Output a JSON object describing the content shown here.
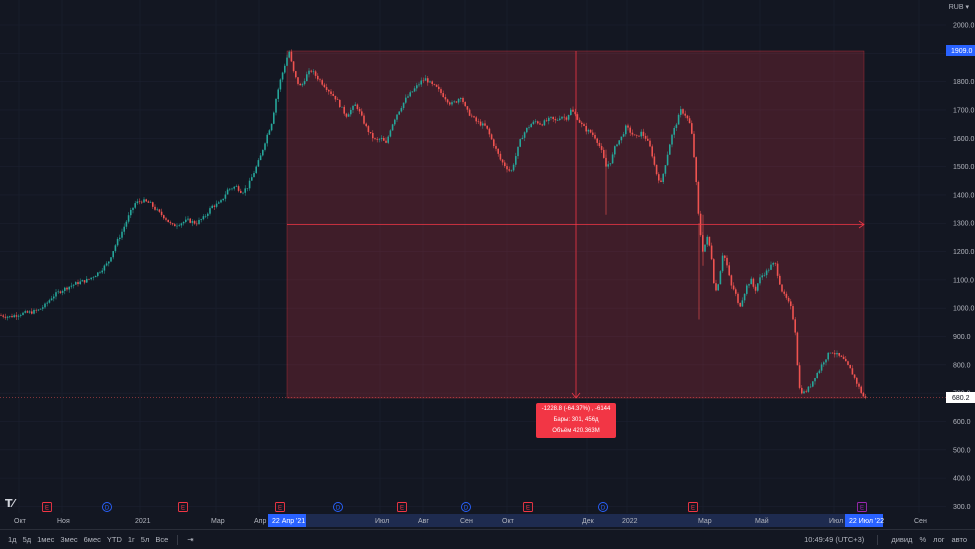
{
  "currency_menu": "RUB ▾",
  "chart_data": {
    "type": "candlestick",
    "title": "",
    "ylim": [
      280,
      2080
    ],
    "y_ticks": [
      300,
      400,
      500,
      600,
      700,
      800,
      900,
      1000,
      1100,
      1200,
      1300,
      1400,
      1500,
      1600,
      1700,
      1800,
      1900,
      2000
    ],
    "y_tick_labels": [
      "300.0",
      "400.0",
      "500.0",
      "600.0",
      "700.0",
      "800.0",
      "900.0",
      "1000.0",
      "1100.0",
      "1200.0",
      "1300.0",
      "1400.0",
      "1500.0",
      "1600.0",
      "1700.0",
      "1800.0",
      "1900.0",
      "2000.0"
    ],
    "x_tick_labels": [
      "Окт",
      "Ноя",
      "2021",
      "Мар",
      "Апр",
      "Июл",
      "Авг",
      "Сен",
      "Окт",
      "Дек",
      "2022",
      "Мар",
      "Май",
      "Июл",
      "Сен"
    ],
    "price_labels": {
      "high": "1909.0",
      "last": "680.2"
    },
    "date_labels": {
      "start": "22 Апр '21",
      "end": "22 Июл '22"
    },
    "path": [
      [
        0,
        975
      ],
      [
        10,
        970
      ],
      [
        20,
        980
      ],
      [
        30,
        985
      ],
      [
        38,
        992
      ],
      [
        45,
        1010
      ],
      [
        52,
        1040
      ],
      [
        60,
        1060
      ],
      [
        68,
        1075
      ],
      [
        78,
        1090
      ],
      [
        88,
        1100
      ],
      [
        98,
        1125
      ],
      [
        108,
        1160
      ],
      [
        115,
        1220
      ],
      [
        122,
        1270
      ],
      [
        128,
        1320
      ],
      [
        135,
        1370
      ],
      [
        142,
        1380
      ],
      [
        150,
        1370
      ],
      [
        158,
        1340
      ],
      [
        165,
        1320
      ],
      [
        172,
        1290
      ],
      [
        180,
        1300
      ],
      [
        188,
        1310
      ],
      [
        196,
        1300
      ],
      [
        204,
        1320
      ],
      [
        212,
        1360
      ],
      [
        220,
        1370
      ],
      [
        228,
        1420
      ],
      [
        236,
        1430
      ],
      [
        242,
        1410
      ],
      [
        248,
        1430
      ],
      [
        254,
        1480
      ],
      [
        260,
        1530
      ],
      [
        266,
        1600
      ],
      [
        272,
        1660
      ],
      [
        276,
        1740
      ],
      [
        280,
        1800
      ],
      [
        284,
        1850
      ],
      [
        289,
        1909
      ],
      [
        293,
        1840
      ],
      [
        297,
        1800
      ],
      [
        301,
        1780
      ],
      [
        306,
        1820
      ],
      [
        311,
        1840
      ],
      [
        316,
        1820
      ],
      [
        321,
        1800
      ],
      [
        326,
        1780
      ],
      [
        331,
        1760
      ],
      [
        336,
        1740
      ],
      [
        341,
        1710
      ],
      [
        346,
        1680
      ],
      [
        351,
        1700
      ],
      [
        356,
        1720
      ],
      [
        361,
        1680
      ],
      [
        366,
        1640
      ],
      [
        371,
        1610
      ],
      [
        376,
        1590
      ],
      [
        381,
        1600
      ],
      [
        386,
        1580
      ],
      [
        391,
        1640
      ],
      [
        396,
        1680
      ],
      [
        401,
        1710
      ],
      [
        406,
        1740
      ],
      [
        411,
        1760
      ],
      [
        416,
        1780
      ],
      [
        421,
        1800
      ],
      [
        426,
        1810
      ],
      [
        431,
        1790
      ],
      [
        436,
        1780
      ],
      [
        441,
        1760
      ],
      [
        446,
        1740
      ],
      [
        451,
        1720
      ],
      [
        456,
        1730
      ],
      [
        461,
        1750
      ],
      [
        466,
        1700
      ],
      [
        471,
        1680
      ],
      [
        476,
        1660
      ],
      [
        481,
        1650
      ],
      [
        486,
        1640
      ],
      [
        491,
        1600
      ],
      [
        496,
        1560
      ],
      [
        501,
        1520
      ],
      [
        506,
        1500
      ],
      [
        511,
        1480
      ],
      [
        516,
        1540
      ],
      [
        521,
        1600
      ],
      [
        526,
        1630
      ],
      [
        531,
        1650
      ],
      [
        536,
        1660
      ],
      [
        541,
        1650
      ],
      [
        546,
        1660
      ],
      [
        551,
        1670
      ],
      [
        556,
        1660
      ],
      [
        561,
        1680
      ],
      [
        566,
        1670
      ],
      [
        571,
        1700
      ],
      [
        576,
        1680
      ],
      [
        581,
        1650
      ],
      [
        586,
        1630
      ],
      [
        591,
        1620
      ],
      [
        596,
        1600
      ],
      [
        601,
        1560
      ],
      [
        606,
        1500
      ],
      [
        611,
        1520
      ],
      [
        616,
        1580
      ],
      [
        621,
        1600
      ],
      [
        626,
        1640
      ],
      [
        631,
        1620
      ],
      [
        636,
        1600
      ],
      [
        641,
        1620
      ],
      [
        646,
        1600
      ],
      [
        651,
        1560
      ],
      [
        656,
        1480
      ],
      [
        661,
        1440
      ],
      [
        666,
        1520
      ],
      [
        671,
        1600
      ],
      [
        676,
        1650
      ],
      [
        681,
        1700
      ],
      [
        686,
        1680
      ],
      [
        691,
        1640
      ],
      [
        695,
        1500
      ],
      [
        699,
        1300
      ],
      [
        703,
        1200
      ],
      [
        707,
        1250
      ],
      [
        711,
        1200
      ],
      [
        715,
        1050
      ],
      [
        719,
        1100
      ],
      [
        723,
        1200
      ],
      [
        727,
        1150
      ],
      [
        731,
        1080
      ],
      [
        735,
        1060
      ],
      [
        739,
        1000
      ],
      [
        743,
        1040
      ],
      [
        747,
        1080
      ],
      [
        751,
        1100
      ],
      [
        755,
        1060
      ],
      [
        759,
        1100
      ],
      [
        763,
        1120
      ],
      [
        767,
        1130
      ],
      [
        771,
        1150
      ],
      [
        775,
        1160
      ],
      [
        779,
        1100
      ],
      [
        783,
        1050
      ],
      [
        787,
        1030
      ],
      [
        791,
        1000
      ],
      [
        795,
        930
      ],
      [
        799,
        720
      ],
      [
        803,
        700
      ],
      [
        807,
        710
      ],
      [
        811,
        730
      ],
      [
        815,
        760
      ],
      [
        819,
        780
      ],
      [
        823,
        810
      ],
      [
        827,
        830
      ],
      [
        831,
        850
      ],
      [
        835,
        840
      ],
      [
        839,
        830
      ],
      [
        843,
        820
      ],
      [
        847,
        800
      ],
      [
        851,
        780
      ],
      [
        855,
        750
      ],
      [
        859,
        720
      ],
      [
        863,
        690
      ],
      [
        866,
        680.2
      ]
    ],
    "measure": {
      "line1": "-1228.8 (-64.37%) , -6144",
      "line2": "Бары: 301, 456д",
      "line3": "Объём 420.363M"
    }
  },
  "event_markers": [
    {
      "letter": "E",
      "kind": "earnings"
    },
    {
      "letter": "D",
      "kind": "dividend"
    },
    {
      "letter": "E",
      "kind": "earnings"
    },
    {
      "letter": "E",
      "kind": "earnings"
    },
    {
      "letter": "D",
      "kind": "dividend"
    },
    {
      "letter": "E",
      "kind": "earnings"
    },
    {
      "letter": "D",
      "kind": "dividend"
    },
    {
      "letter": "E",
      "kind": "earnings"
    },
    {
      "letter": "D",
      "kind": "dividend"
    },
    {
      "letter": "E",
      "kind": "earnings"
    },
    {
      "letter": "E",
      "kind": "earnings-upcoming"
    }
  ],
  "bottom_bar": {
    "ranges": [
      "1д",
      "5д",
      "1мес",
      "3мес",
      "6мес",
      "YTD",
      "1г",
      "5л",
      "Все"
    ],
    "time": "10:49:49 (UTC+3)",
    "scale_options": [
      "дивид",
      "%",
      "лог",
      "авто"
    ]
  },
  "colors": {
    "background": "#131722",
    "up": "#26a69a",
    "down": "#ef5350",
    "measure_fill": "rgba(242, 54, 69, 0.2)",
    "accent": "#2962ff",
    "measure_label": "#f23645"
  }
}
